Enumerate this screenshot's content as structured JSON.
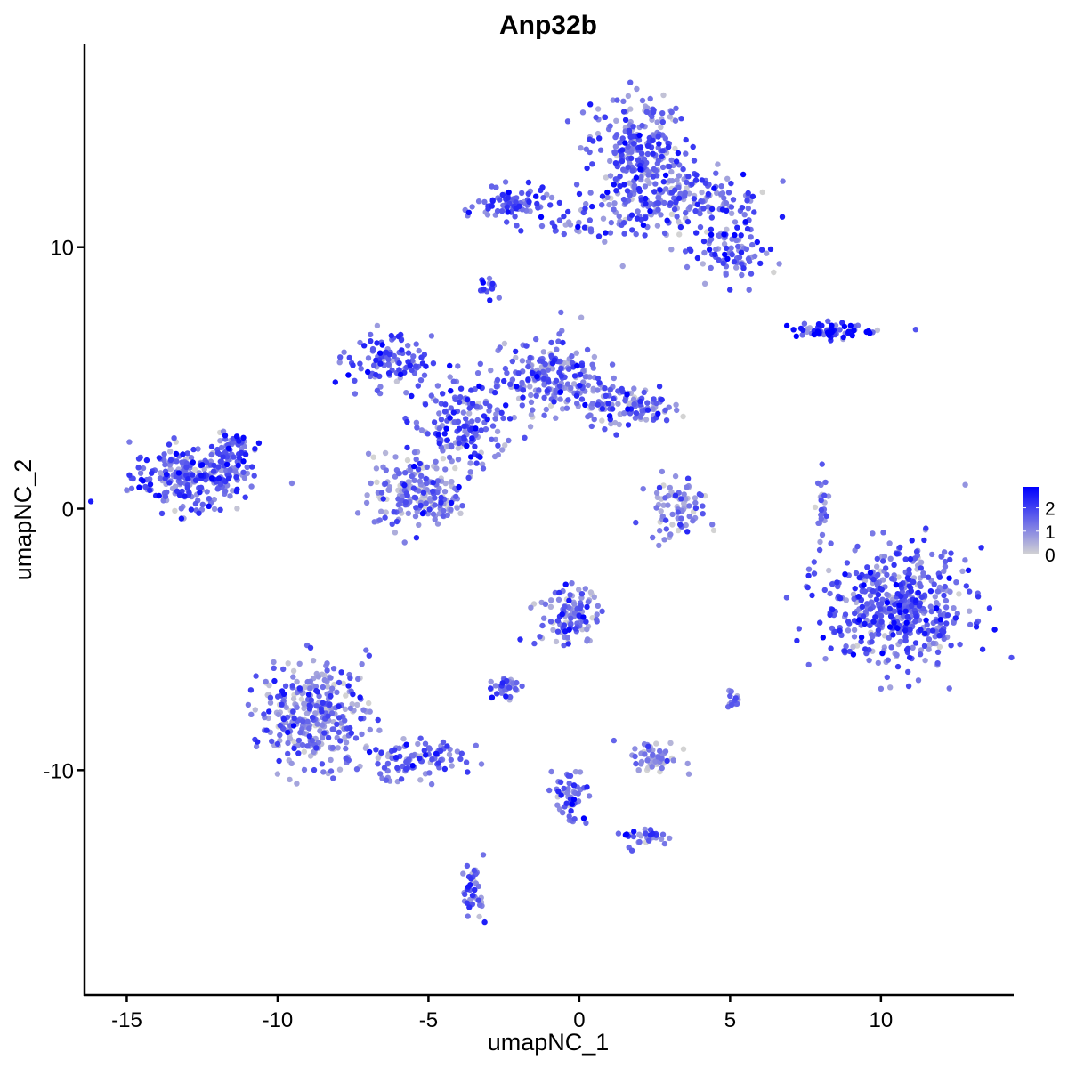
{
  "chart_data": {
    "type": "scatter",
    "title": "Anp32b",
    "xlabel": "umapNC_1",
    "ylabel": "umapNC_2",
    "xlim": [
      -16.4,
      14.4
    ],
    "ylim": [
      -18.6,
      17.75
    ],
    "xticks": [
      -15,
      -10,
      -5,
      0,
      5,
      10
    ],
    "yticks": [
      -10,
      0,
      10
    ],
    "grid": false,
    "color_scale": {
      "low": "#D3D3D3",
      "high": "#0000FF",
      "min": 0,
      "max": 2.9,
      "ticks": [
        0,
        1,
        2
      ]
    },
    "legend_position": "right",
    "clusters": [
      {
        "x": -12.8,
        "y": 1.2,
        "sx": 1.0,
        "sy": 0.6,
        "n": 260,
        "expr": 1.5
      },
      {
        "x": -11.6,
        "y": 2.2,
        "sx": 0.4,
        "sy": 0.4,
        "n": 50,
        "expr": 1.7
      },
      {
        "x": 1.9,
        "y": 13.7,
        "sx": 0.8,
        "sy": 1.1,
        "n": 260,
        "expr": 1.3
      },
      {
        "x": 3.6,
        "y": 11.8,
        "sx": 1.2,
        "sy": 0.6,
        "n": 180,
        "expr": 1.3
      },
      {
        "x": 5.0,
        "y": 9.8,
        "sx": 0.6,
        "sy": 0.6,
        "n": 90,
        "expr": 1.5
      },
      {
        "x": -2.2,
        "y": 11.6,
        "sx": 0.6,
        "sy": 0.3,
        "n": 80,
        "expr": 1.6
      },
      {
        "x": 0.3,
        "y": 11.0,
        "sx": 1.0,
        "sy": 0.3,
        "n": 50,
        "expr": 1.6
      },
      {
        "x": -6.3,
        "y": 5.6,
        "sx": 0.7,
        "sy": 0.5,
        "n": 110,
        "expr": 1.5
      },
      {
        "x": -5.3,
        "y": 0.6,
        "sx": 0.8,
        "sy": 0.7,
        "n": 200,
        "expr": 1.1
      },
      {
        "x": -3.8,
        "y": 3.2,
        "sx": 0.8,
        "sy": 0.8,
        "n": 170,
        "expr": 1.5
      },
      {
        "x": -0.9,
        "y": 5.0,
        "sx": 0.8,
        "sy": 0.7,
        "n": 200,
        "expr": 1.3
      },
      {
        "x": 1.5,
        "y": 4.0,
        "sx": 0.8,
        "sy": 0.4,
        "n": 120,
        "expr": 1.3
      },
      {
        "x": 3.3,
        "y": 0.0,
        "sx": 0.5,
        "sy": 0.6,
        "n": 80,
        "expr": 0.9
      },
      {
        "x": 10.5,
        "y": -3.8,
        "sx": 1.2,
        "sy": 1.1,
        "n": 500,
        "expr": 1.5
      },
      {
        "x": -8.8,
        "y": -7.8,
        "sx": 0.9,
        "sy": 1.0,
        "n": 330,
        "expr": 1.1
      },
      {
        "x": -5.6,
        "y": -9.6,
        "sx": 0.9,
        "sy": 0.4,
        "n": 100,
        "expr": 1.2
      },
      {
        "x": -0.3,
        "y": -4.1,
        "sx": 0.5,
        "sy": 0.6,
        "n": 110,
        "expr": 1.3
      },
      {
        "x": -2.4,
        "y": -6.8,
        "sx": 0.3,
        "sy": 0.2,
        "n": 40,
        "expr": 1.2
      },
      {
        "x": 2.5,
        "y": -9.5,
        "sx": 0.4,
        "sy": 0.3,
        "n": 60,
        "expr": 0.9
      },
      {
        "x": -0.3,
        "y": -11.0,
        "sx": 0.3,
        "sy": 0.6,
        "n": 50,
        "expr": 1.4
      },
      {
        "x": 2.2,
        "y": -12.6,
        "sx": 0.3,
        "sy": 0.2,
        "n": 30,
        "expr": 1.6
      },
      {
        "x": -3.5,
        "y": -14.6,
        "sx": 0.2,
        "sy": 0.5,
        "n": 40,
        "expr": 1.4
      },
      {
        "x": 8.3,
        "y": 6.8,
        "sx": 0.8,
        "sy": 0.15,
        "n": 70,
        "expr": 2.0
      },
      {
        "x": 8.0,
        "y": 0.2,
        "sx": 0.15,
        "sy": 0.6,
        "n": 25,
        "expr": 1.2
      },
      {
        "x": -3.0,
        "y": 8.4,
        "sx": 0.2,
        "sy": 0.2,
        "n": 15,
        "expr": 1.4
      },
      {
        "x": 5.1,
        "y": -7.3,
        "sx": 0.15,
        "sy": 0.2,
        "n": 15,
        "expr": 1.3
      }
    ]
  }
}
